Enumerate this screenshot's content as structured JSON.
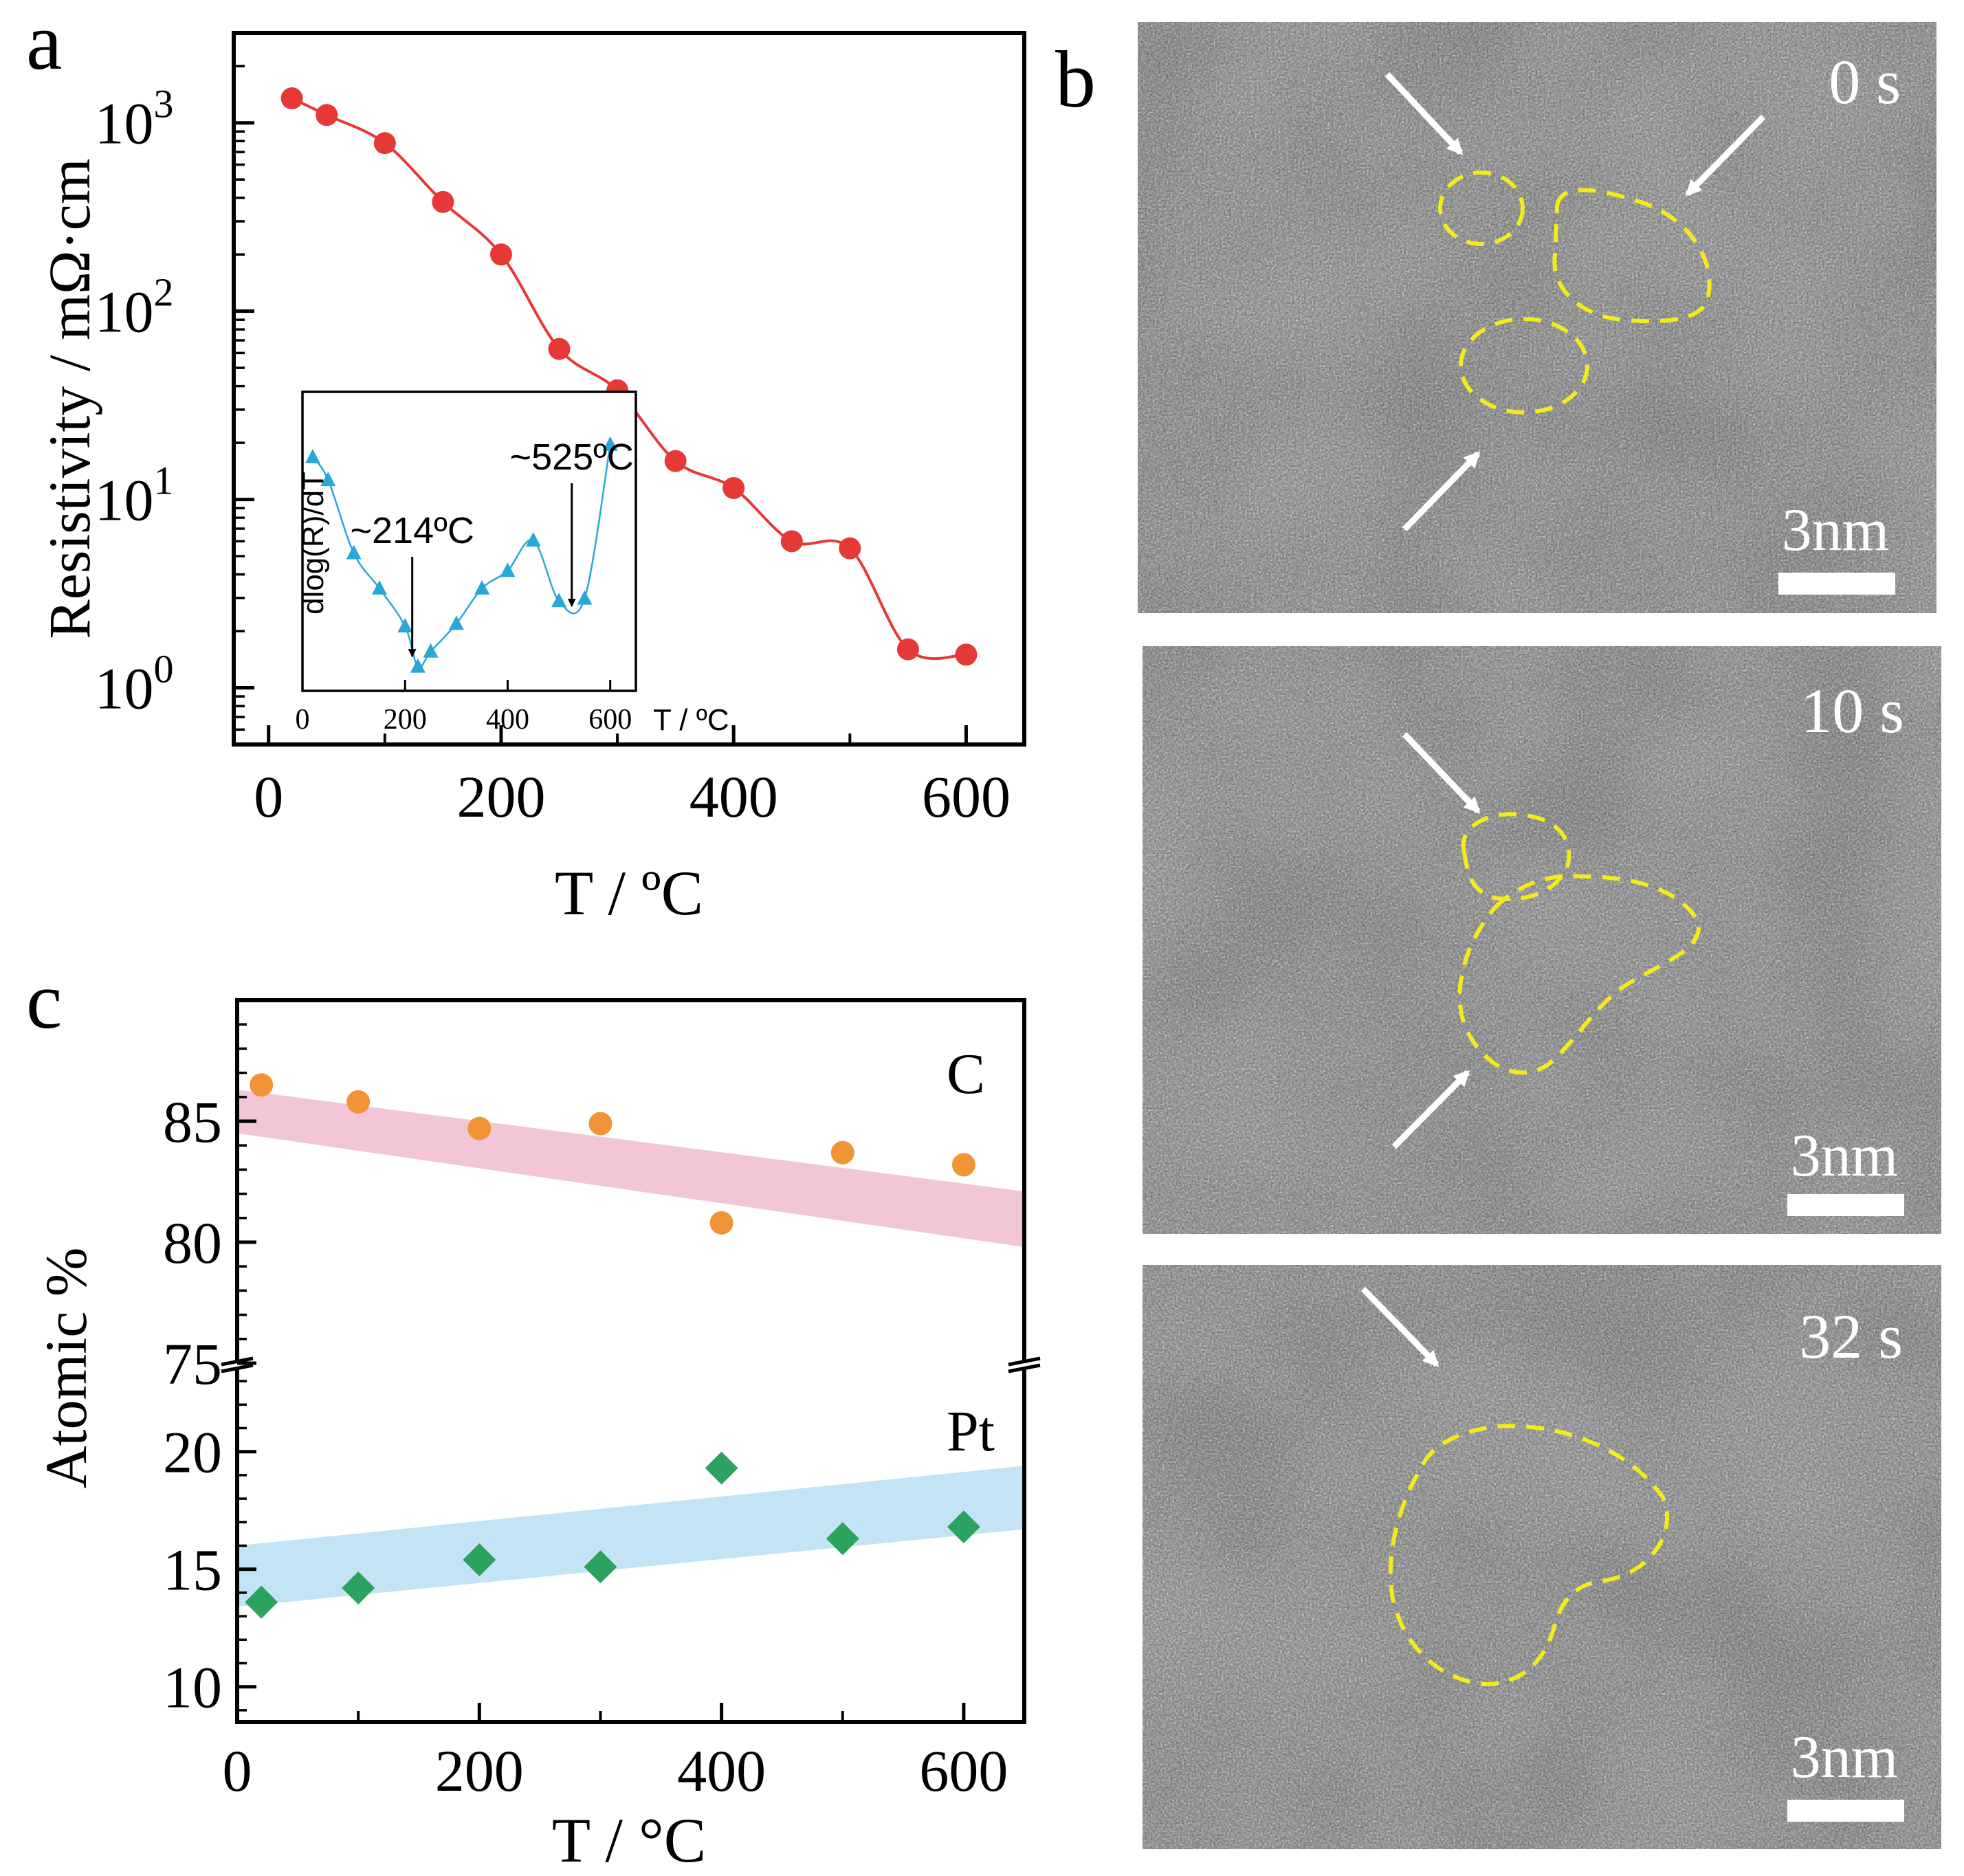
{
  "panel_labels": {
    "a": "a",
    "b": "b",
    "c": "c"
  },
  "colors": {
    "resistivity": "#e53935",
    "derivative": "#29a8d8",
    "carbon": "#f09436",
    "platinum": "#2ca25f",
    "carbon_band": "#f2c6d6",
    "platinum_band": "#c3e4f4",
    "outline": "#f4ea1c"
  },
  "chart_data": [
    {
      "panel": "a",
      "type": "line",
      "scale": "log-y",
      "xlabel": "T / ºC",
      "ylabel": "Resistivity / mΩ·cm",
      "xlim": [
        -30,
        650
      ],
      "ylim": [
        0.5,
        3000
      ],
      "x_ticks": [
        "0",
        "200",
        "400",
        "600"
      ],
      "y_ticks": [
        {
          "base": "10",
          "exp": "0"
        },
        {
          "base": "10",
          "exp": "1"
        },
        {
          "base": "10",
          "exp": "2"
        },
        {
          "base": "10",
          "exp": "3"
        }
      ],
      "x": [
        20,
        50,
        100,
        150,
        200,
        250,
        300,
        350,
        400,
        450,
        500,
        550,
        600
      ],
      "values": [
        1350,
        1100,
        780,
        380,
        200,
        63,
        38,
        16,
        11.5,
        6.0,
        5.5,
        1.6,
        1.5
      ],
      "inset": {
        "type": "line",
        "ylabel": "dlog(R)/dT",
        "xlabel": "T / ºC",
        "xlim": [
          0,
          650
        ],
        "ylim": [
          0,
          1
        ],
        "x_ticks": [
          "0",
          "200",
          "400",
          "600"
        ],
        "x": [
          20,
          50,
          100,
          150,
          200,
          225,
          250,
          300,
          350,
          400,
          450,
          500,
          550,
          600
        ],
        "values": [
          0.85,
          0.76,
          0.47,
          0.33,
          0.18,
          0.02,
          0.08,
          0.19,
          0.33,
          0.4,
          0.52,
          0.28,
          0.29,
          0.9
        ],
        "annotations": [
          {
            "text": "~214ºC",
            "x": 214
          },
          {
            "text": "~525ºC",
            "x": 525
          }
        ]
      }
    },
    {
      "panel": "c",
      "type": "scatter",
      "xlabel": "T / °C",
      "ylabel": "Atomic %",
      "xlim": [
        0,
        650
      ],
      "x_ticks": [
        "0",
        "200",
        "400",
        "600"
      ],
      "broken_y_axis": true,
      "upper": {
        "ylim": [
          75,
          90
        ],
        "y_ticks": [
          "75",
          "80",
          "85"
        ],
        "series": [
          {
            "name": "C",
            "x": [
              20,
              100,
              200,
              300,
              400,
              500,
              600
            ],
            "values": [
              86.5,
              85.8,
              84.7,
              84.9,
              80.8,
              83.7,
              83.2
            ]
          }
        ],
        "band": {
          "x": [
            0,
            650
          ],
          "lower": [
            84.5,
            79.8
          ],
          "upper": [
            86.3,
            82.1
          ]
        }
      },
      "lower": {
        "ylim": [
          8.5,
          23.5
        ],
        "y_ticks": [
          "10",
          "15",
          "20"
        ],
        "series": [
          {
            "name": "Pt",
            "x": [
              20,
              100,
              200,
              300,
              400,
              500,
              600
            ],
            "values": [
              13.6,
              14.2,
              15.4,
              15.1,
              19.3,
              16.3,
              16.8
            ]
          }
        ],
        "band": {
          "x": [
            0,
            650
          ],
          "lower": [
            13.4,
            16.7
          ],
          "upper": [
            16.0,
            19.4
          ]
        }
      }
    }
  ],
  "tem_panels": [
    {
      "time": "0 s",
      "scale": "3nm"
    },
    {
      "time": "10 s",
      "scale": "3nm"
    },
    {
      "time": "32 s",
      "scale": "3nm"
    }
  ]
}
